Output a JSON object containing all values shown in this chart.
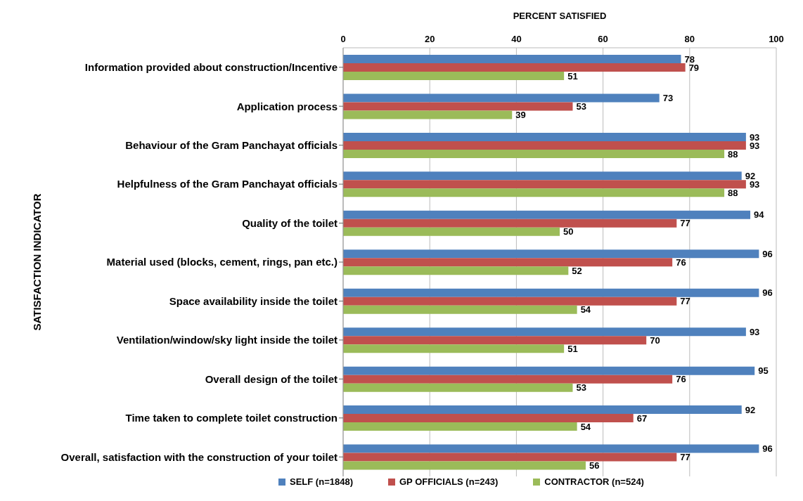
{
  "chart_data": {
    "type": "bar",
    "orientation": "horizontal",
    "xlabel": "PERCENT SATISFIED",
    "ylabel": "SATISFACTION INDICATOR",
    "categories": [
      "Information provided about construction/Incentive",
      "Application process",
      "Behaviour of the Gram Panchayat officials",
      "Helpfulness of the Gram Panchayat officials",
      "Quality of the toilet",
      "Material used (blocks, cement, rings, pan etc.)",
      "Space availability inside the toilet",
      "Ventilation/window/sky light inside the toilet",
      "Overall design of the toilet",
      "Time taken to complete toilet construction",
      "Overall, satisfaction with the construction of your toilet"
    ],
    "series": [
      {
        "name": "SELF (n=1848)",
        "color": "#4f81bd",
        "values": [
          78,
          73,
          93,
          92,
          94,
          96,
          96,
          93,
          95,
          92,
          96
        ]
      },
      {
        "name": "GP OFFICIALS (n=243)",
        "color": "#c0504d",
        "values": [
          79,
          53,
          93,
          93,
          77,
          76,
          77,
          70,
          76,
          67,
          77
        ]
      },
      {
        "name": "CONTRACTOR (n=524)",
        "color": "#9bbb59",
        "values": [
          51,
          39,
          88,
          88,
          50,
          52,
          54,
          51,
          53,
          54,
          56
        ]
      }
    ],
    "xlim": [
      0,
      100
    ],
    "xticks": [
      0,
      20,
      40,
      60,
      80,
      100
    ],
    "grid": "x",
    "legend": "bottom",
    "data_labels": true
  }
}
